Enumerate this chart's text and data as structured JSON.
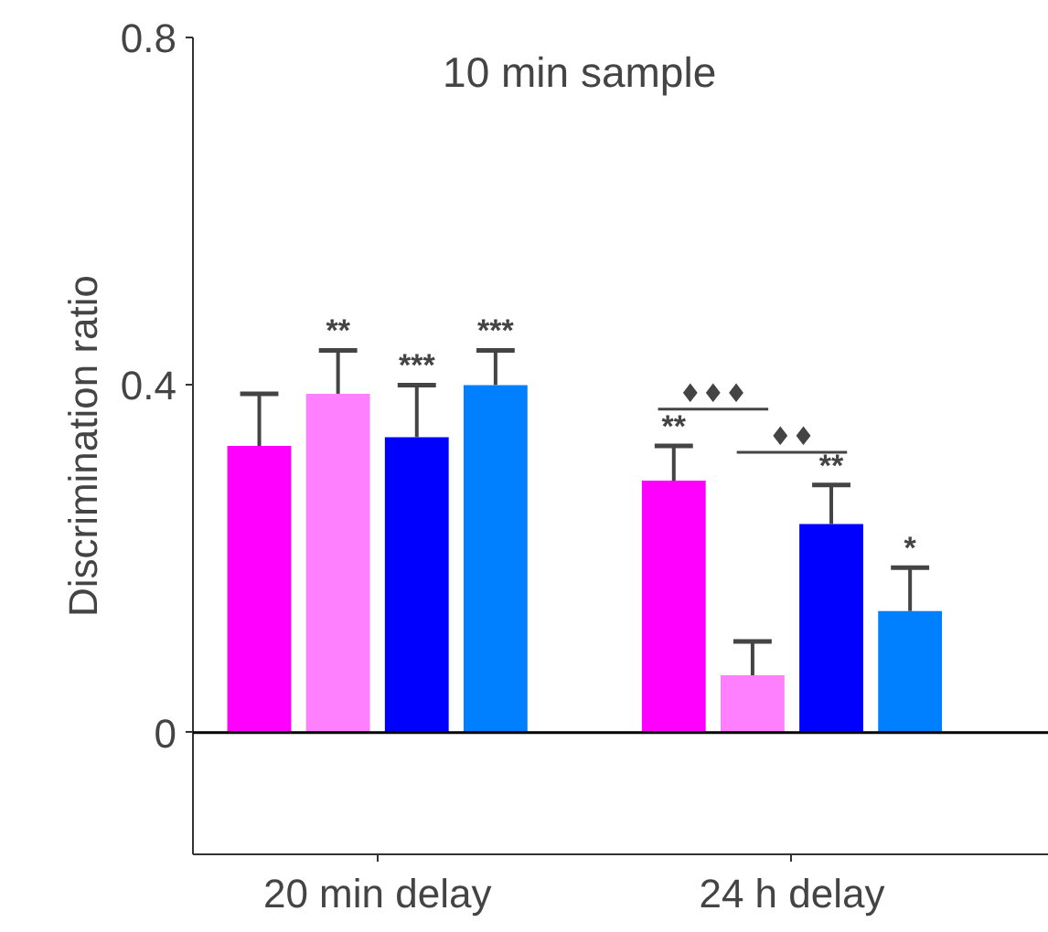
{
  "chart_data": {
    "type": "bar",
    "title": "10 min sample",
    "ylabel": "Discrimination ratio",
    "categories": [
      "20 min delay",
      "24 h delay"
    ],
    "series": [
      {
        "color": "#ff00ff",
        "values": [
          0.33,
          0.29
        ],
        "errors": [
          [
            0.33,
            0.39
          ],
          [
            0.29,
            0.33
          ]
        ],
        "value_labels": [
          null,
          "**"
        ]
      },
      {
        "color": "#ff80ff",
        "values": [
          0.39,
          0.066
        ],
        "errors": [
          [
            0.39,
            0.44
          ],
          [
            0.066,
            0.105
          ]
        ],
        "value_labels": [
          "**",
          null
        ]
      },
      {
        "color": "#0000ff",
        "values": [
          0.34,
          0.24
        ],
        "errors": [
          [
            0.34,
            0.4
          ],
          [
            0.24,
            0.285
          ]
        ],
        "value_labels": [
          "***",
          "**"
        ]
      },
      {
        "color": "#0080ff",
        "values": [
          0.4,
          0.14
        ],
        "errors": [
          [
            0.4,
            0.44
          ],
          [
            0.14,
            0.19
          ]
        ],
        "value_labels": [
          "***",
          "*"
        ]
      }
    ],
    "annotations": [
      "♦♦♦",
      "♦♦"
    ],
    "ref_lines": [
      {
        "axis": "y",
        "value": 0,
        "color": "#000000"
      }
    ],
    "ylim": [
      -0.14,
      0.8
    ],
    "yticks": [
      0,
      0.4,
      0.8
    ],
    "grid": false
  }
}
